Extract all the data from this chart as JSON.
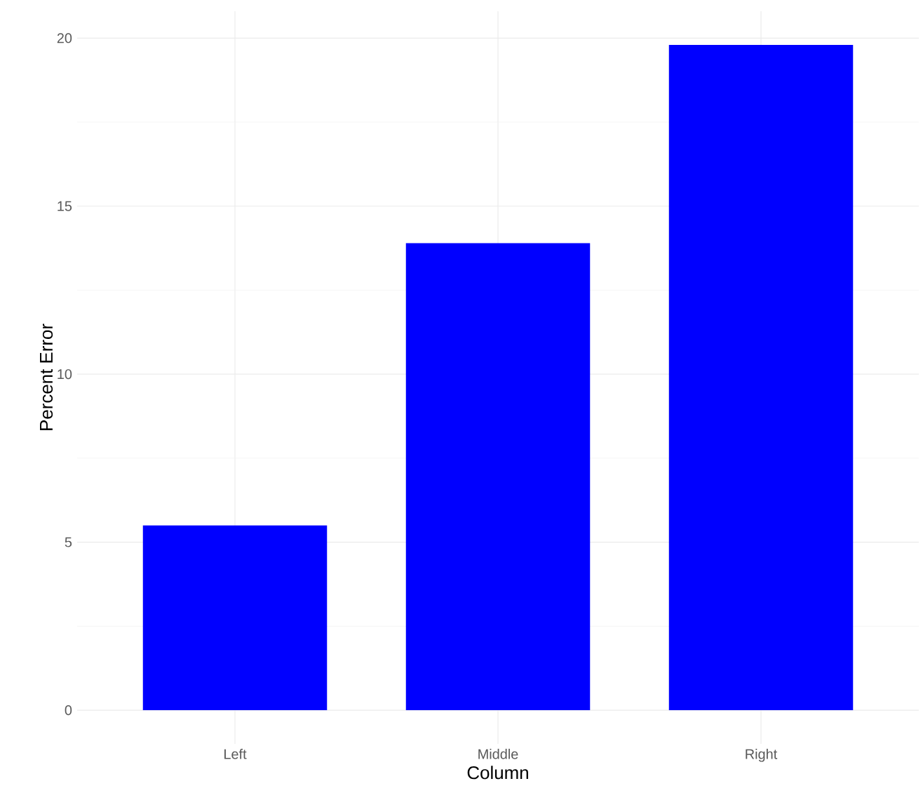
{
  "chart_data": {
    "type": "bar",
    "xlabel": "Column",
    "ylabel": "Percent Error",
    "categories": [
      "Left",
      "Middle",
      "Right"
    ],
    "values": [
      5.5,
      13.9,
      19.8
    ],
    "color": "#0000ff",
    "ylim": [
      -1,
      20.8
    ],
    "yticks": [
      0,
      5,
      10,
      15,
      20
    ],
    "grid": true
  }
}
